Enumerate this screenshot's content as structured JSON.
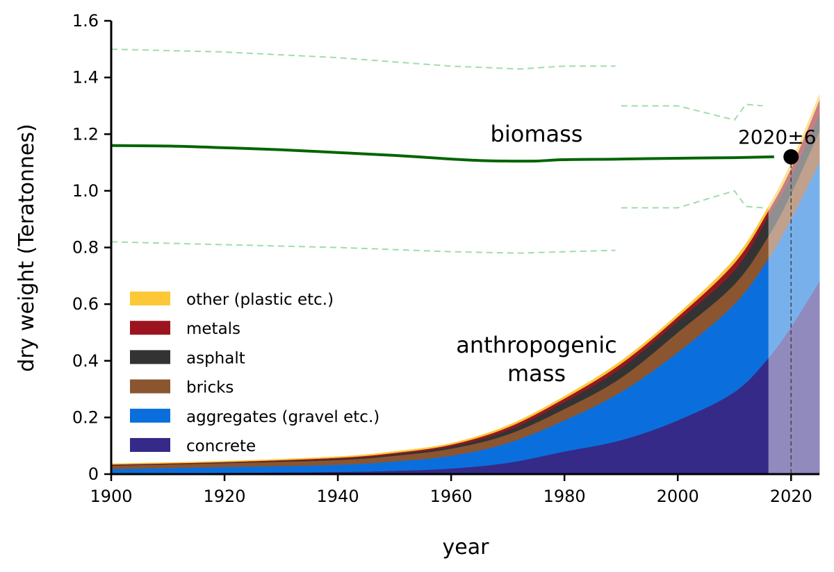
{
  "chart_data": {
    "type": "area",
    "stacked": true,
    "xlabel": "year",
    "ylabel": "dry weight (Teratonnes)",
    "xlim": [
      1900,
      2025
    ],
    "ylim": [
      0,
      1.6
    ],
    "xticks": [
      "1900",
      "1920",
      "1940",
      "1960",
      "1980",
      "2000",
      "2020"
    ],
    "yticks": [
      "0",
      "0.2",
      "0.4",
      "0.6",
      "0.8",
      "1.0",
      "1.2",
      "1.4",
      "1.6"
    ],
    "grid": false,
    "legend_position": "lower-left",
    "x": [
      1900,
      1920,
      1940,
      1950,
      1960,
      1970,
      1980,
      1990,
      2000,
      2010,
      2016,
      2020,
      2025
    ],
    "series": [
      {
        "name": "concrete",
        "color": "#352a87",
        "values": [
          0.003,
          0.005,
          0.008,
          0.012,
          0.02,
          0.04,
          0.08,
          0.12,
          0.19,
          0.29,
          0.41,
          0.52,
          0.68
        ]
      },
      {
        "name": "aggregates (gravel etc.)",
        "color": "#0a6fdc",
        "values": [
          0.015,
          0.02,
          0.025,
          0.033,
          0.045,
          0.07,
          0.11,
          0.17,
          0.24,
          0.31,
          0.35,
          0.38,
          0.42
        ]
      },
      {
        "name": "bricks",
        "color": "#8b5530",
        "values": [
          0.012,
          0.014,
          0.017,
          0.02,
          0.025,
          0.03,
          0.04,
          0.05,
          0.07,
          0.07,
          0.08,
          0.09,
          0.11
        ]
      },
      {
        "name": "asphalt",
        "color": "#333333",
        "values": [
          0.002,
          0.002,
          0.004,
          0.005,
          0.008,
          0.015,
          0.025,
          0.035,
          0.04,
          0.05,
          0.07,
          0.06,
          0.06
        ]
      },
      {
        "name": "metals",
        "color": "#9b1520",
        "values": [
          0.002,
          0.002,
          0.004,
          0.005,
          0.006,
          0.01,
          0.012,
          0.015,
          0.015,
          0.025,
          0.02,
          0.03,
          0.05
        ]
      },
      {
        "name": "other (plastic etc.)",
        "color": "#fcc838",
        "values": [
          0.003,
          0.003,
          0.004,
          0.005,
          0.005,
          0.007,
          0.008,
          0.01,
          0.01,
          0.015,
          0.015,
          0.02,
          0.02
        ]
      }
    ],
    "projection_start": 2016,
    "biomass": {
      "color": "#006400",
      "band_color": "#9fdcaa",
      "x": [
        1900,
        1910,
        1920,
        1930,
        1940,
        1950,
        1960,
        1965,
        1970,
        1975,
        1980,
        1990,
        2000,
        2010,
        2017
      ],
      "y": [
        1.16,
        1.158,
        1.152,
        1.145,
        1.135,
        1.125,
        1.112,
        1.107,
        1.105,
        1.105,
        1.11,
        1.112,
        1.115,
        1.117,
        1.12
      ],
      "upper_1": {
        "x": [
          1900,
          1920,
          1940,
          1960,
          1972,
          1980,
          1989
        ],
        "y": [
          1.5,
          1.49,
          1.47,
          1.44,
          1.43,
          1.44,
          1.44
        ]
      },
      "lower_1": {
        "x": [
          1900,
          1920,
          1940,
          1960,
          1972,
          1980,
          1989
        ],
        "y": [
          0.82,
          0.81,
          0.8,
          0.785,
          0.78,
          0.785,
          0.79
        ]
      },
      "upper_2": {
        "x": [
          1990,
          2000,
          2010,
          2012,
          2015
        ],
        "y": [
          1.3,
          1.3,
          1.25,
          1.305,
          1.3
        ]
      },
      "lower_2": {
        "x": [
          1990,
          2000,
          2010,
          2012,
          2015
        ],
        "y": [
          0.94,
          0.94,
          1.0,
          0.945,
          0.94
        ]
      }
    },
    "crossover": {
      "x": 2020,
      "y": 1.12,
      "label": "2020±6"
    },
    "annotations": {
      "biomass": "biomass",
      "anthropogenic_1": "anthropogenic",
      "anthropogenic_2": "mass"
    }
  }
}
